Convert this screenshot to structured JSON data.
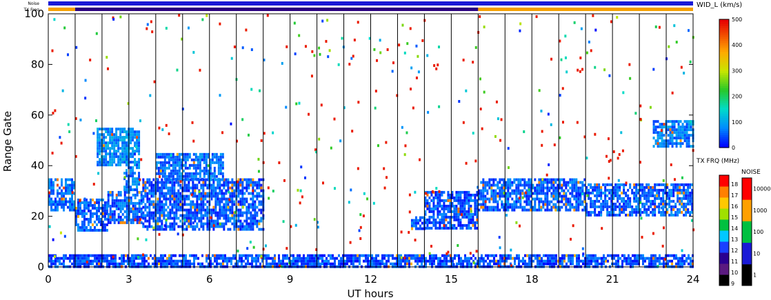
{
  "chart_data": {
    "type": "heatmap",
    "title": "",
    "xlabel": "UT hours",
    "ylabel": "Range Gate",
    "xlim": [
      0,
      24
    ],
    "ylim": [
      0,
      100
    ],
    "x_ticks": [
      "0",
      "3",
      "6",
      "9",
      "12",
      "15",
      "18",
      "21",
      "24"
    ],
    "y_ticks": [
      "0",
      "20",
      "40",
      "60",
      "80",
      "100"
    ],
    "vertical_scan_lines_hours": [
      1,
      2,
      3,
      4,
      5,
      6,
      7,
      8,
      9,
      10,
      11,
      12,
      13,
      14,
      15,
      16,
      17,
      18,
      19,
      20,
      21,
      22,
      23
    ],
    "grid": false,
    "status_bars": [
      {
        "label": "Noise",
        "value_range": [
          0,
          24
        ],
        "dominant_color": "#1a1ad6"
      },
      {
        "label": "TX Freq",
        "segments": [
          {
            "x0": 0,
            "x1": 1,
            "color": "#f5a000"
          },
          {
            "x0": 1,
            "x1": 16,
            "color": "#2a0080"
          },
          {
            "x0": 16,
            "x1": 24,
            "color": "#f5a000"
          }
        ]
      }
    ],
    "colorbars": [
      {
        "label": "WID_L (km/s)",
        "ticks": [
          "0",
          "100",
          "200",
          "300",
          "400",
          "500"
        ],
        "range": [
          0,
          500
        ]
      },
      {
        "label": "TX FRQ (MHz)",
        "ticks": [
          "9",
          "10",
          "11",
          "12",
          "13",
          "14",
          "15",
          "16",
          "17",
          "18"
        ]
      },
      {
        "label": "NOISE",
        "ticks": [
          "1",
          "10",
          "100",
          "1000",
          "10000"
        ]
      }
    ],
    "data_regions": [
      {
        "x0": 0.0,
        "x1": 1.0,
        "y0": 23,
        "y1": 35,
        "value": 60
      },
      {
        "x0": 1.0,
        "x1": 2.2,
        "y0": 15,
        "y1": 27,
        "value": 50
      },
      {
        "x0": 2.2,
        "x1": 3.5,
        "y0": 18,
        "y1": 30,
        "value": 50
      },
      {
        "x0": 2.8,
        "x1": 3.4,
        "y0": 30,
        "y1": 55,
        "value": 70
      },
      {
        "x0": 3.5,
        "x1": 8.0,
        "y0": 15,
        "y1": 35,
        "value": 45
      },
      {
        "x0": 4.0,
        "x1": 6.5,
        "y0": 35,
        "y1": 45,
        "value": 60
      },
      {
        "x0": 1.8,
        "x1": 3.0,
        "y0": 40,
        "y1": 55,
        "value": 80
      },
      {
        "x0": 13.5,
        "x1": 14.0,
        "y0": 15,
        "y1": 20,
        "value": 40
      },
      {
        "x0": 14.0,
        "x1": 16.0,
        "y0": 15,
        "y1": 30,
        "value": 45
      },
      {
        "x0": 16.0,
        "x1": 20.0,
        "y0": 22,
        "y1": 35,
        "value": 50
      },
      {
        "x0": 20.0,
        "x1": 24.0,
        "y0": 20,
        "y1": 33,
        "value": 50
      },
      {
        "x0": 22.5,
        "x1": 24.0,
        "y0": 48,
        "y1": 58,
        "value": 70
      },
      {
        "x0": 0.0,
        "x1": 24.0,
        "y0": 0,
        "y1": 5,
        "value": 40
      }
    ]
  }
}
